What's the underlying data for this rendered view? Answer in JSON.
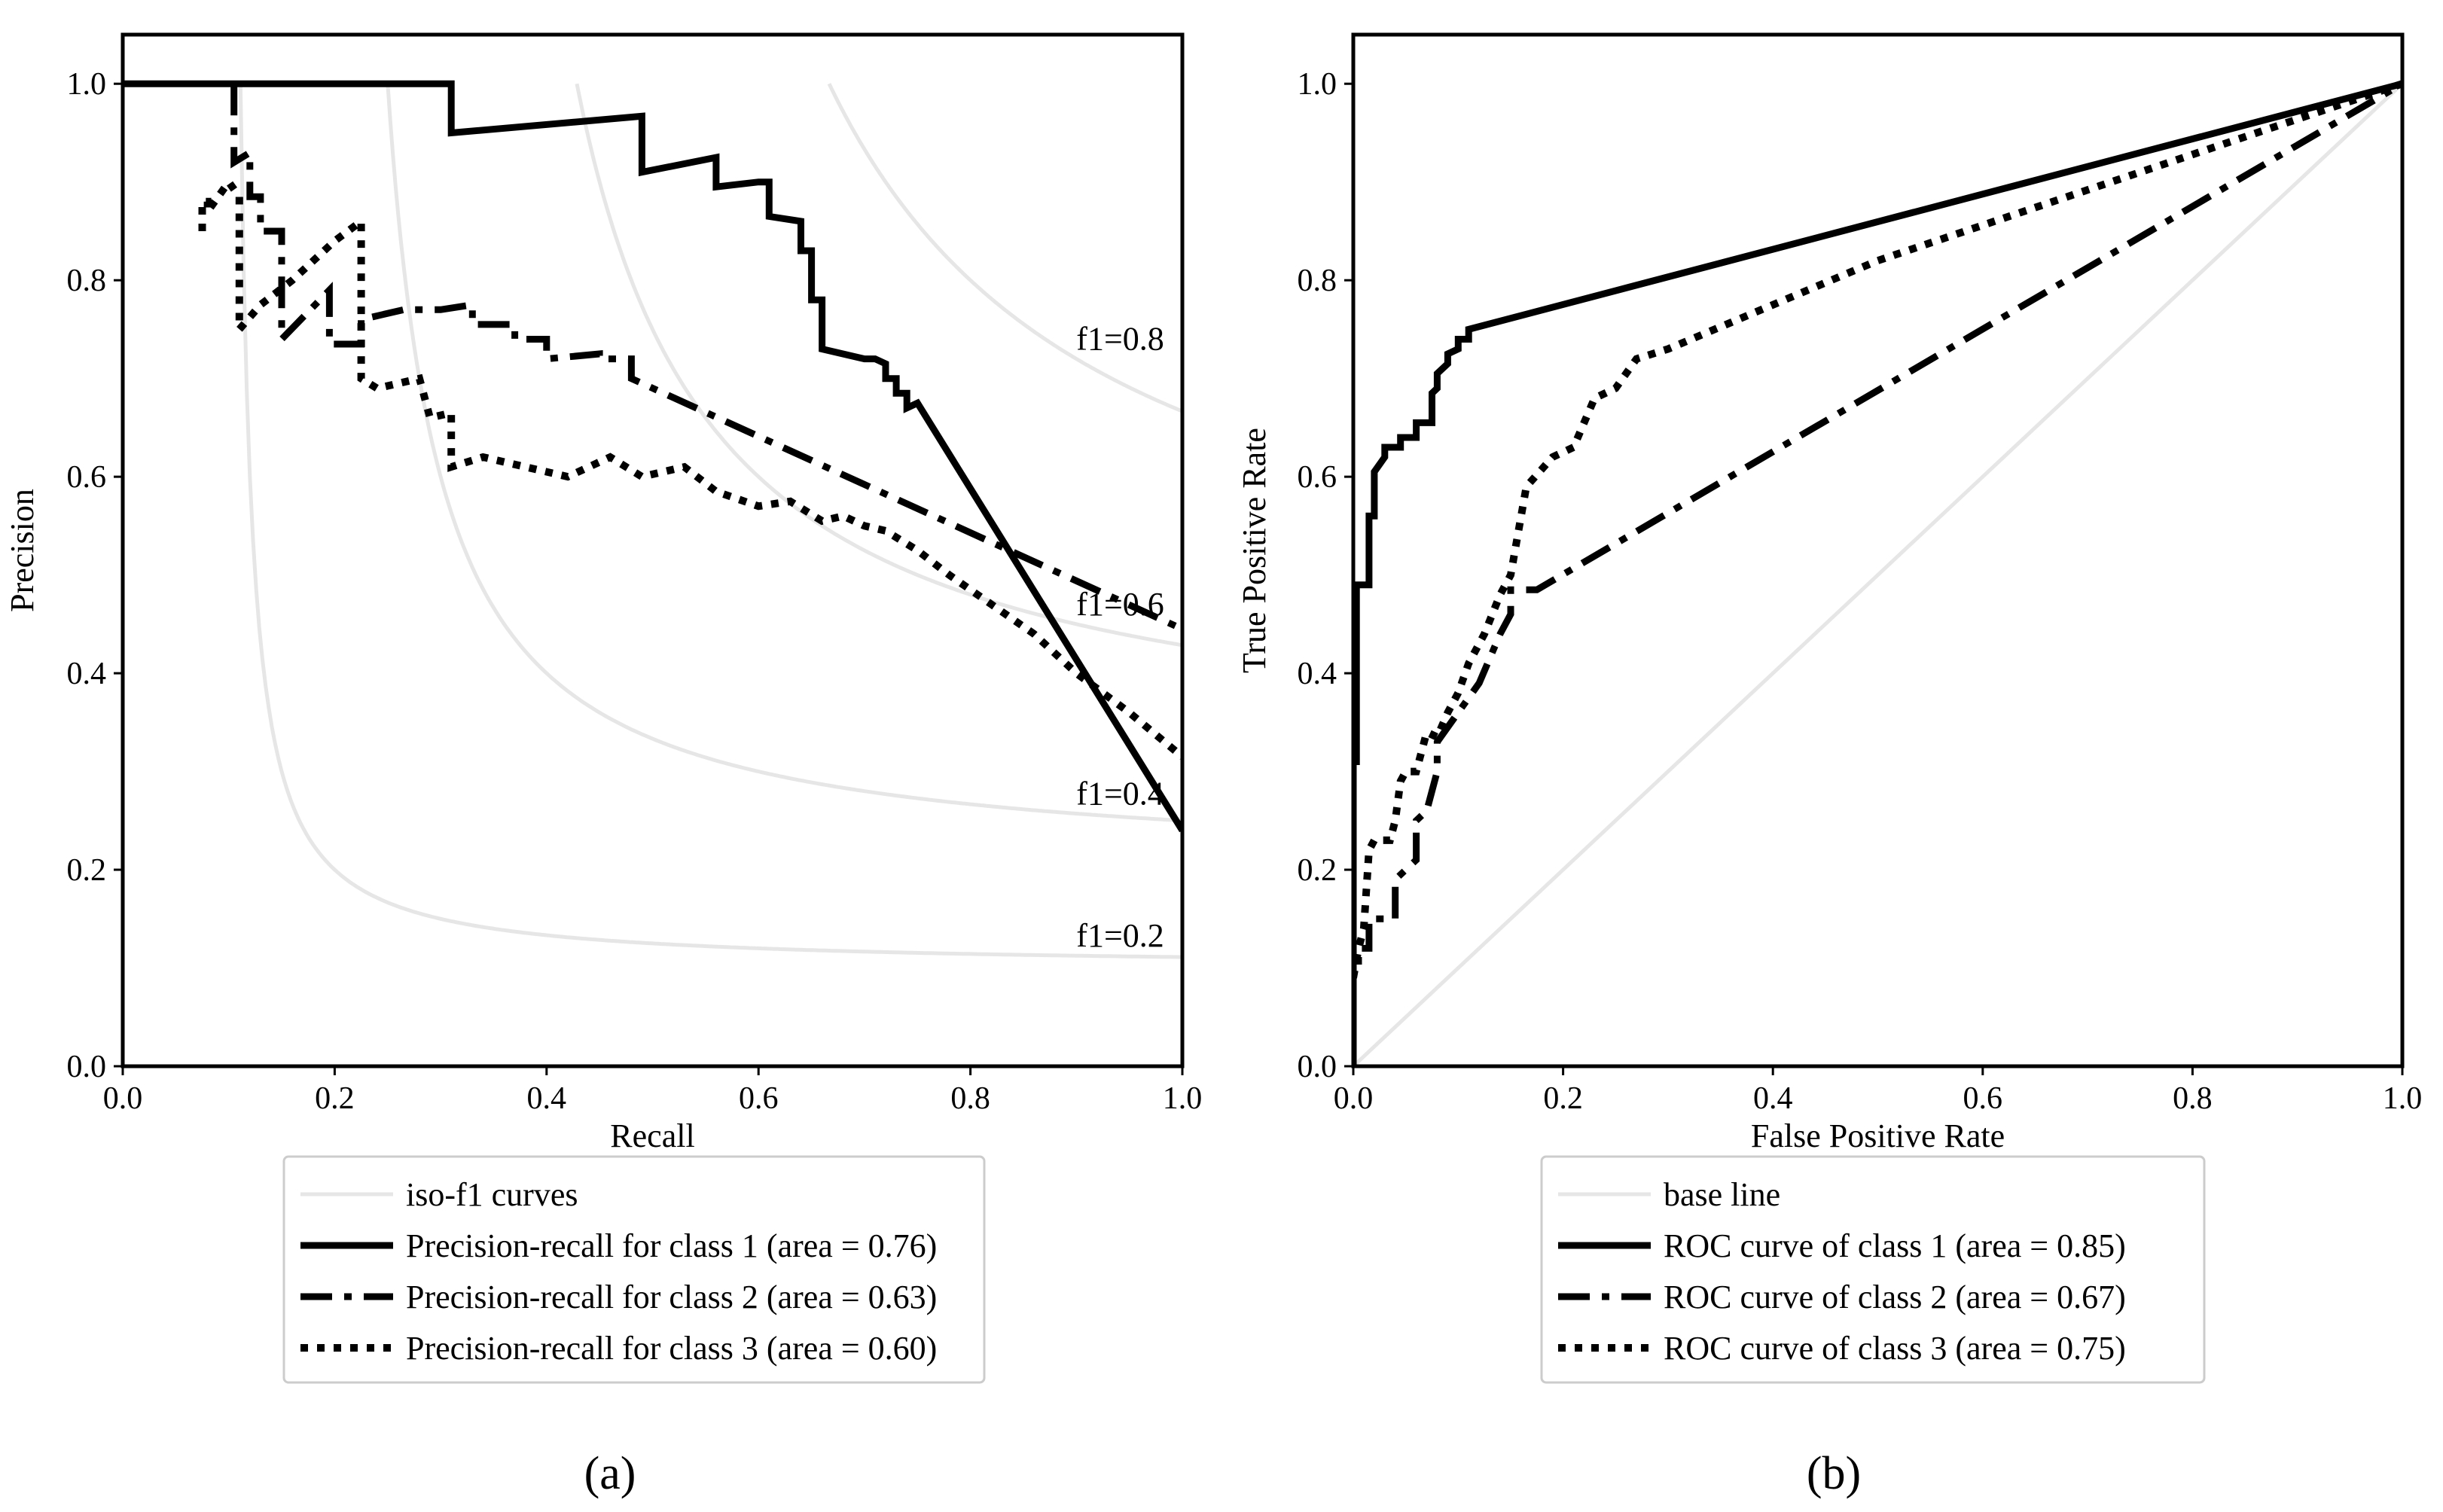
{
  "chart_data": [
    {
      "id": "a",
      "type": "line",
      "panel_label": "(a)",
      "xlabel": "Recall",
      "ylabel": "Precision",
      "xlim": [
        0.0,
        1.0
      ],
      "ylim": [
        0.0,
        1.05
      ],
      "xticks": [
        "0.0",
        "0.2",
        "0.4",
        "0.6",
        "0.8",
        "1.0"
      ],
      "yticks": [
        "0.0",
        "0.2",
        "0.4",
        "0.6",
        "0.8",
        "1.0"
      ],
      "legend": {
        "placement": "below"
      },
      "iso_f1": [
        {
          "f": 0.2,
          "label": "f1=0.2"
        },
        {
          "f": 0.4,
          "label": "f1=0.4"
        },
        {
          "f": 0.6,
          "label": "f1=0.6"
        },
        {
          "f": 0.8,
          "label": "f1=0.8"
        }
      ],
      "series": [
        {
          "name": "iso-f1 curves",
          "style": "iso",
          "color": "#e6e6e6",
          "x": [],
          "y": []
        },
        {
          "name": "Precision-recall for class 1 (area = 0.76)",
          "style": "solid",
          "color": "#000000",
          "x": [
            0.0,
            0.31,
            0.31,
            0.49,
            0.49,
            0.56,
            0.56,
            0.6,
            0.61,
            0.61,
            0.64,
            0.64,
            0.65,
            0.65,
            0.66,
            0.66,
            0.7,
            0.71,
            0.72,
            0.72,
            0.73,
            0.73,
            0.74,
            0.74,
            0.75,
            1.0
          ],
          "y": [
            1.0,
            1.0,
            0.95,
            0.967,
            0.91,
            0.925,
            0.895,
            0.9,
            0.9,
            0.865,
            0.86,
            0.83,
            0.83,
            0.78,
            0.78,
            0.73,
            0.72,
            0.72,
            0.715,
            0.7,
            0.7,
            0.685,
            0.685,
            0.67,
            0.675,
            0.24
          ]
        },
        {
          "name": "Precision-recall for class 2 (area = 0.63)",
          "style": "dashdot",
          "color": "#000000",
          "x": [
            0.105,
            0.105,
            0.12,
            0.12,
            0.13,
            0.13,
            0.15,
            0.15,
            0.195,
            0.195,
            0.225,
            0.225,
            0.265,
            0.3,
            0.33,
            0.33,
            0.37,
            0.37,
            0.4,
            0.4,
            0.45,
            0.45,
            0.48,
            0.48,
            1.0
          ],
          "y": [
            1.0,
            0.92,
            0.93,
            0.885,
            0.885,
            0.85,
            0.85,
            0.74,
            0.79,
            0.735,
            0.735,
            0.76,
            0.77,
            0.77,
            0.775,
            0.755,
            0.755,
            0.74,
            0.74,
            0.72,
            0.725,
            0.72,
            0.72,
            0.7,
            0.445
          ]
        },
        {
          "name": "Precision-recall for class 3 (area = 0.60)",
          "style": "dotted",
          "color": "#000000",
          "x": [
            0.075,
            0.075,
            0.08,
            0.08,
            0.1,
            0.11,
            0.11,
            0.13,
            0.16,
            0.2,
            0.225,
            0.225,
            0.24,
            0.28,
            0.29,
            0.31,
            0.31,
            0.34,
            0.38,
            0.42,
            0.46,
            0.49,
            0.53,
            0.56,
            0.6,
            0.63,
            0.66,
            0.68,
            0.7,
            0.72,
            0.75,
            0.78,
            0.82,
            0.86,
            0.9,
            0.95,
            1.0
          ],
          "y": [
            0.85,
            0.88,
            0.88,
            0.87,
            0.9,
            0.885,
            0.75,
            0.775,
            0.8,
            0.84,
            0.86,
            0.7,
            0.69,
            0.7,
            0.66,
            0.665,
            0.61,
            0.62,
            0.61,
            0.6,
            0.62,
            0.6,
            0.61,
            0.585,
            0.57,
            0.575,
            0.555,
            0.56,
            0.55,
            0.545,
            0.525,
            0.5,
            0.47,
            0.44,
            0.4,
            0.36,
            0.315
          ]
        }
      ]
    },
    {
      "id": "b",
      "type": "line",
      "panel_label": "(b)",
      "xlabel": "False Positive Rate",
      "ylabel": "True Positive Rate",
      "xlim": [
        0.0,
        1.0
      ],
      "ylim": [
        0.0,
        1.05
      ],
      "xticks": [
        "0.0",
        "0.2",
        "0.4",
        "0.6",
        "0.8",
        "1.0"
      ],
      "yticks": [
        "0.0",
        "0.2",
        "0.4",
        "0.6",
        "0.8",
        "1.0"
      ],
      "legend": {
        "placement": "below"
      },
      "series": [
        {
          "name": "base line",
          "style": "solid-light",
          "color": "#e6e6e6",
          "x": [
            0.0,
            1.0
          ],
          "y": [
            0.0,
            1.0
          ]
        },
        {
          "name": "ROC curve of class 1 (area = 0.85)",
          "style": "solid",
          "color": "#000000",
          "x": [
            0.0,
            0.0,
            0.003,
            0.003,
            0.015,
            0.015,
            0.02,
            0.02,
            0.03,
            0.03,
            0.045,
            0.045,
            0.06,
            0.06,
            0.075,
            0.075,
            0.08,
            0.08,
            0.09,
            0.09,
            0.1,
            0.1,
            0.11,
            0.11,
            1.0
          ],
          "y": [
            0.0,
            0.31,
            0.31,
            0.49,
            0.49,
            0.56,
            0.56,
            0.605,
            0.62,
            0.63,
            0.63,
            0.64,
            0.64,
            0.655,
            0.655,
            0.685,
            0.69,
            0.705,
            0.715,
            0.725,
            0.73,
            0.74,
            0.74,
            0.75,
            1.0
          ]
        },
        {
          "name": "ROC curve of class 2 (area = 0.67)",
          "style": "dashdot",
          "color": "#000000",
          "x": [
            0.0,
            0.0,
            0.005,
            0.005,
            0.015,
            0.015,
            0.03,
            0.04,
            0.04,
            0.05,
            0.06,
            0.06,
            0.07,
            0.08,
            0.08,
            0.1,
            0.12,
            0.14,
            0.15,
            0.15,
            0.175,
            1.0
          ],
          "y": [
            0.0,
            0.1,
            0.1,
            0.12,
            0.12,
            0.15,
            0.15,
            0.15,
            0.19,
            0.2,
            0.21,
            0.25,
            0.26,
            0.3,
            0.33,
            0.36,
            0.39,
            0.44,
            0.46,
            0.485,
            0.485,
            1.0
          ]
        },
        {
          "name": "ROC curve of class 3 (area = 0.75)",
          "style": "dotted",
          "color": "#000000",
          "x": [
            0.0,
            0.005,
            0.01,
            0.015,
            0.02,
            0.035,
            0.04,
            0.045,
            0.05,
            0.06,
            0.07,
            0.08,
            0.09,
            0.1,
            0.11,
            0.125,
            0.14,
            0.15,
            0.165,
            0.19,
            0.21,
            0.23,
            0.25,
            0.27,
            0.3,
            0.5,
            0.75,
            1.0
          ],
          "y": [
            0.09,
            0.12,
            0.14,
            0.22,
            0.23,
            0.23,
            0.25,
            0.29,
            0.3,
            0.3,
            0.34,
            0.335,
            0.36,
            0.38,
            0.41,
            0.44,
            0.48,
            0.5,
            0.59,
            0.62,
            0.63,
            0.68,
            0.69,
            0.72,
            0.73,
            0.82,
            0.91,
            1.0
          ]
        }
      ]
    }
  ]
}
